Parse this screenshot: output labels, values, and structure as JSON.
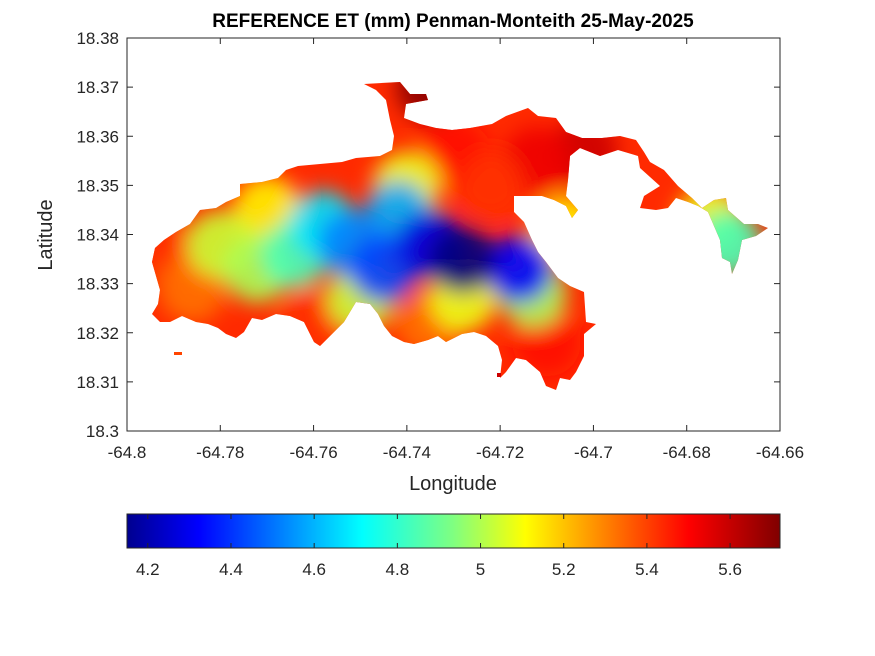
{
  "chart_data": {
    "type": "heatmap",
    "title": "REFERENCE ET (mm) Penman-Monteith 25-May-2025",
    "xlabel": "Longitude",
    "ylabel": "Latitude",
    "xlim": [
      -64.8,
      -64.66
    ],
    "ylim": [
      18.3,
      18.38
    ],
    "x_ticks": [
      "-64.8",
      "-64.78",
      "-64.76",
      "-64.74",
      "-64.72",
      "-64.7",
      "-64.68",
      "-64.66"
    ],
    "y_ticks": [
      "18.3",
      "18.31",
      "18.32",
      "18.33",
      "18.34",
      "18.35",
      "18.36",
      "18.37",
      "18.38"
    ],
    "colorbar": {
      "colormap": "jet",
      "range": [
        4.15,
        5.72
      ],
      "ticks": [
        "4.2",
        "4.4",
        "4.6",
        "4.8",
        "5",
        "5.2",
        "5.4",
        "5.6"
      ],
      "placement": "bottom"
    },
    "features": [
      {
        "lon": -64.728,
        "lat": 18.335,
        "value": 4.15
      },
      {
        "lon": -64.735,
        "lat": 18.338,
        "value": 4.3
      },
      {
        "lon": -64.716,
        "lat": 18.333,
        "value": 4.35
      },
      {
        "lon": -64.745,
        "lat": 18.333,
        "value": 4.45
      },
      {
        "lon": -64.752,
        "lat": 18.338,
        "value": 4.55
      },
      {
        "lon": -64.742,
        "lat": 18.344,
        "value": 4.6
      },
      {
        "lon": -64.758,
        "lat": 18.342,
        "value": 4.7
      },
      {
        "lon": -64.764,
        "lat": 18.336,
        "value": 4.85
      },
      {
        "lon": -64.772,
        "lat": 18.333,
        "value": 5.0
      },
      {
        "lon": -64.78,
        "lat": 18.338,
        "value": 5.05
      },
      {
        "lon": -64.75,
        "lat": 18.327,
        "value": 5.05
      },
      {
        "lon": -64.77,
        "lat": 18.345,
        "value": 5.15
      },
      {
        "lon": -64.728,
        "lat": 18.327,
        "value": 5.1
      },
      {
        "lon": -64.713,
        "lat": 18.328,
        "value": 5.0
      },
      {
        "lon": -64.74,
        "lat": 18.35,
        "value": 5.1
      },
      {
        "lon": -64.786,
        "lat": 18.329,
        "value": 5.35
      },
      {
        "lon": -64.79,
        "lat": 18.335,
        "value": 5.45
      },
      {
        "lon": -64.76,
        "lat": 18.322,
        "value": 5.45
      },
      {
        "lon": -64.735,
        "lat": 18.322,
        "value": 5.35
      },
      {
        "lon": -64.71,
        "lat": 18.318,
        "value": 5.5
      },
      {
        "lon": -64.73,
        "lat": 18.357,
        "value": 5.5
      },
      {
        "lon": -64.735,
        "lat": 18.37,
        "value": 5.7
      },
      {
        "lon": -64.722,
        "lat": 18.35,
        "value": 5.45
      },
      {
        "lon": -64.712,
        "lat": 18.355,
        "value": 5.55
      },
      {
        "lon": -64.702,
        "lat": 18.357,
        "value": 5.6
      },
      {
        "lon": -64.706,
        "lat": 18.341,
        "value": 5.15
      },
      {
        "lon": -64.671,
        "lat": 18.338,
        "value": 4.85
      },
      {
        "lon": -64.675,
        "lat": 18.343,
        "value": 5.1
      }
    ]
  }
}
